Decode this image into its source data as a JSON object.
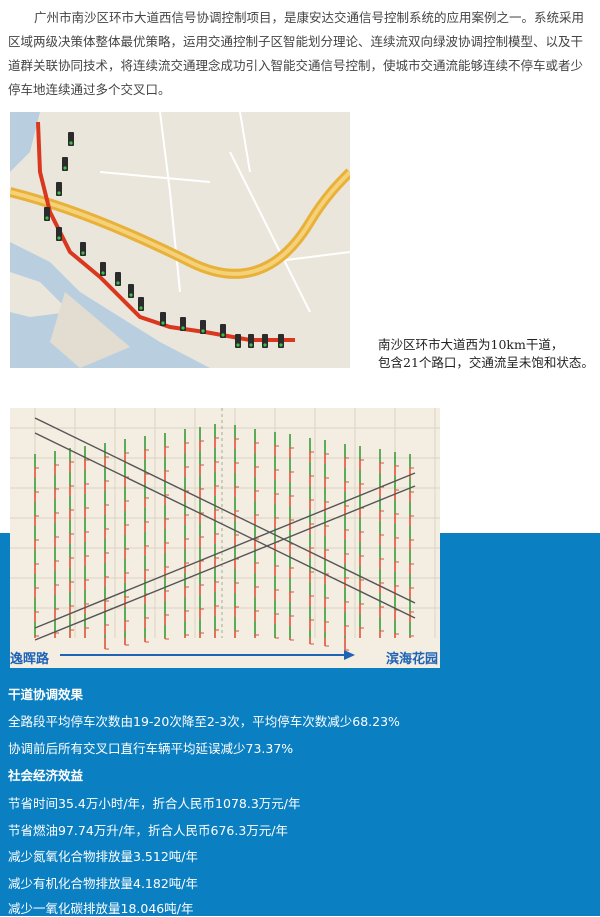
{
  "intro": "广州市南沙区环市大道西信号协调控制项目，是康安达交通信号控制系统的应用案例之一。系统采用区域两级决策体整体最优策略，运用交通控制子区智能划分理论、连续流双向绿波协调控制模型、以及干道群关联协同技术，将连续流交通理念成功引入智能交通信号控制，使城市交通流能够连续不停车或者少停车地连续通过多个交叉口。",
  "map_caption": {
    "line1": "南沙区环市大道西为10km干道，",
    "line2": "包含21个路口，交通流呈未饱和状态。"
  },
  "diagram": {
    "left_label": "逸晖路",
    "right_label": "滨海花园"
  },
  "results": {
    "heading1": "干道协调效果",
    "item1": "全路段平均停车次数由19-20次降至2-3次，平均停车次数减少68.23%",
    "item2": "协调前后所有交叉口直行车辆平均延误减少73.37%",
    "heading2": "社会经济效益",
    "item3": "节省时间35.4万小时/年，折合人民币1078.3万元/年",
    "item4": "节省燃油97.74万升/年，折合人民币676.3万元/年",
    "item5": "减少氮氧化合物排放量3.512吨/年",
    "item6": "减少有机化合物排放量4.182吨/年",
    "item7": "减少一氧化碳排放量18.046吨/年"
  },
  "colors": {
    "blue_panel": "#0a7fc2",
    "route": "#d9381e",
    "highway": "#e8b13a",
    "water": "#b7cde0",
    "diagram_bg": "#f3ede2",
    "label_blue": "#1d63b6"
  }
}
